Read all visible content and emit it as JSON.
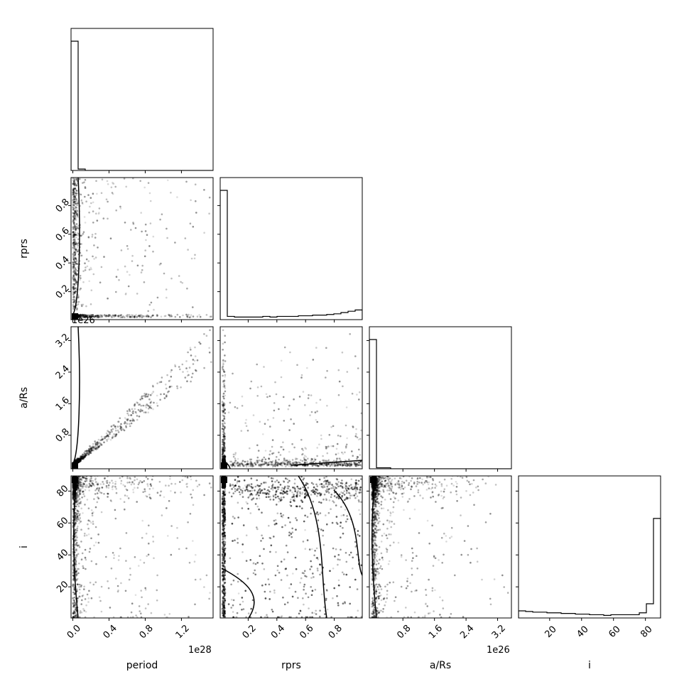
{
  "chart_data": {
    "type": "corner",
    "parameters": [
      "period",
      "rprs",
      "a/Rs",
      "i"
    ],
    "axis_labels": {
      "period": "period",
      "rprs": "rprs",
      "a_rs": "a/Rs",
      "i": "i"
    },
    "offset_labels": {
      "period": "1e28",
      "a_rs": "1e26",
      "rprs_panel_period": "1e26"
    },
    "ticks": {
      "period": [
        "0.0",
        "0.4",
        "0.8",
        "1.2"
      ],
      "rprs": [
        "0.2",
        "0.4",
        "0.6",
        "0.8"
      ],
      "a_rs": [
        "0.8",
        "1.6",
        "2.4",
        "3.2"
      ],
      "i": [
        "20",
        "40",
        "60",
        "80"
      ]
    },
    "ranges": {
      "period": [
        -0.02,
        1.55
      ],
      "rprs": [
        0.005,
        0.995
      ],
      "a_rs": [
        -0.05,
        3.55
      ],
      "i": [
        0.5,
        89.5
      ]
    },
    "histograms": [
      {
        "param": "period",
        "counts": [
          1.0,
          0.011,
          0,
          0,
          0,
          0,
          0,
          0,
          0,
          0,
          0,
          0,
          0,
          0,
          0,
          0,
          0,
          0,
          0,
          0
        ]
      },
      {
        "param": "rprs",
        "counts": [
          1.0,
          0.025,
          0.02,
          0.02,
          0.02,
          0.02,
          0.025,
          0.02,
          0.025,
          0.025,
          0.025,
          0.03,
          0.03,
          0.035,
          0.035,
          0.04,
          0.045,
          0.055,
          0.065,
          0.075
        ]
      },
      {
        "param": "a/Rs",
        "counts": [
          1.0,
          0.008,
          0.008,
          0,
          0,
          0,
          0,
          0,
          0,
          0,
          0,
          0,
          0,
          0,
          0,
          0,
          0,
          0,
          0,
          0
        ]
      },
      {
        "param": "i",
        "counts": [
          0.055,
          0.05,
          0.045,
          0.045,
          0.04,
          0.04,
          0.035,
          0.035,
          0.03,
          0.03,
          0.025,
          0.025,
          0.02,
          0.025,
          0.025,
          0.025,
          0.025,
          0.04,
          0.11,
          0.77
        ]
      }
    ]
  }
}
